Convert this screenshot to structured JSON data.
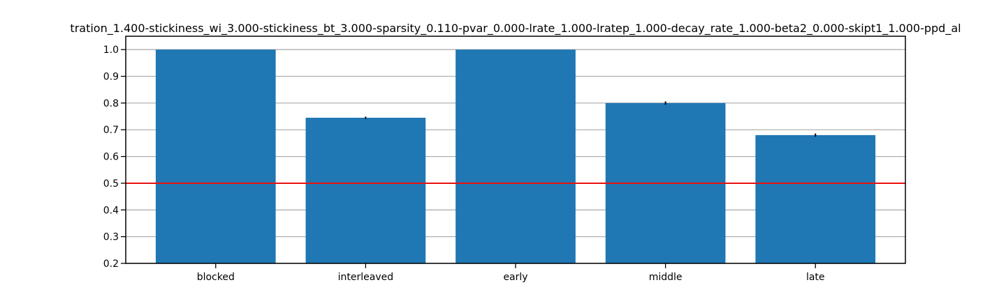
{
  "chart_data": {
    "type": "bar",
    "title": "tration_1.400-stickiness_wi_3.000-stickiness_bt_3.000-sparsity_0.110-pvar_0.000-lrate_1.000-lratep_1.000-decay_rate_1.000-beta2_0.000-skipt1_1.000-ppd_al",
    "xlabel": "",
    "ylabel": "",
    "categories": [
      "blocked",
      "interleaved",
      "early",
      "middle",
      "late"
    ],
    "values": [
      1.0,
      0.745,
      1.0,
      0.8,
      0.68
    ],
    "errors": [
      0.0,
      0.004,
      0.0,
      0.006,
      0.006
    ],
    "ylim": [
      0.2,
      1.05
    ],
    "yticks": [
      "0.2",
      "0.3",
      "0.4",
      "0.5",
      "0.6",
      "0.7",
      "0.8",
      "0.9",
      "1.0"
    ],
    "reference_line": 0.5,
    "grid": "horizontal",
    "bar_color": "#1f77b4",
    "reference_line_color": "#e8110d",
    "grid_color": "#b0b0b0",
    "error_color": "#000000"
  }
}
